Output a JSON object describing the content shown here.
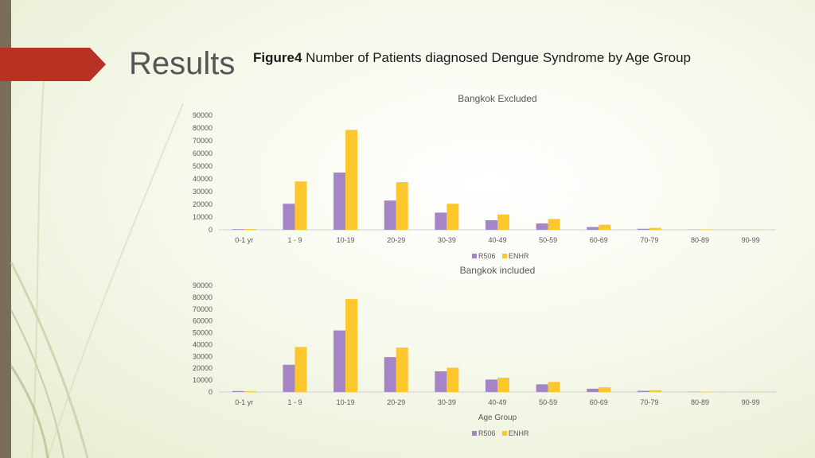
{
  "slide": {
    "title": "Results",
    "caption_bold": "Figure4",
    "caption_text": " Number of Patients diagnosed Dengue Syndrome by Age Group"
  },
  "colors": {
    "R506": "#a585c6",
    "ENHR": "#fbc72c",
    "left_bar": "#7a6e58",
    "arrow": "#b83224"
  },
  "chart_data": [
    {
      "type": "bar",
      "title": "Bangkok Excluded",
      "xlabel": "",
      "ylabel": "",
      "categories": [
        "0-1 yr",
        "1 - 9",
        "10-19",
        "20-29",
        "30-39",
        "40-49",
        "50-59",
        "60-69",
        "70-79",
        "80-89",
        "90-99"
      ],
      "series": [
        {
          "name": "R506",
          "color": "#a585c6",
          "values": [
            500,
            20500,
            45000,
            23000,
            13500,
            7500,
            5000,
            2200,
            800,
            200,
            50
          ]
        },
        {
          "name": "ENHR",
          "color": "#fbc72c",
          "values": [
            600,
            38000,
            78500,
            37500,
            20500,
            12000,
            8500,
            4000,
            1500,
            300,
            100
          ]
        }
      ],
      "ylim": [
        0,
        90000
      ],
      "yticks": [
        0,
        10000,
        20000,
        30000,
        40000,
        50000,
        60000,
        70000,
        80000,
        90000
      ],
      "legend": "bottom",
      "grid": false
    },
    {
      "type": "bar",
      "title": "Bangkok included",
      "xlabel": "Age Group",
      "ylabel": "",
      "categories": [
        "0-1 yr",
        "1 - 9",
        "10-19",
        "20-29",
        "30-39",
        "40-49",
        "50-59",
        "60-69",
        "70-79",
        "80-89",
        "90-99"
      ],
      "series": [
        {
          "name": "R506",
          "color": "#a585c6",
          "values": [
            800,
            23000,
            52000,
            29500,
            17500,
            10500,
            6500,
            2800,
            1000,
            200,
            50
          ]
        },
        {
          "name": "ENHR",
          "color": "#fbc72c",
          "values": [
            600,
            38000,
            78500,
            37500,
            20500,
            12000,
            8500,
            4000,
            1500,
            300,
            100
          ]
        }
      ],
      "ylim": [
        0,
        90000
      ],
      "yticks": [
        0,
        10000,
        20000,
        30000,
        40000,
        50000,
        60000,
        70000,
        80000,
        90000
      ],
      "legend": "bottom",
      "grid": false
    }
  ]
}
